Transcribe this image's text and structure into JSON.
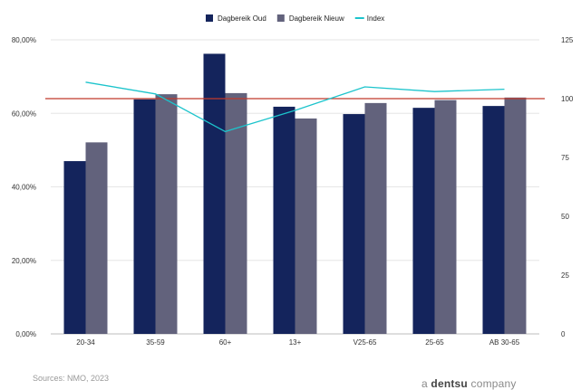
{
  "chart_data": {
    "type": "bar",
    "categories": [
      "20-34",
      "35-59",
      "60+",
      "13+",
      "V25-65",
      "25-65",
      "AB 30-65"
    ],
    "series": [
      {
        "name": "Dagbereik Oud",
        "type": "bar",
        "axis": "left",
        "color": "#14245c",
        "values": [
          47.0,
          63.8,
          76.2,
          61.8,
          59.8,
          61.5,
          62.0
        ]
      },
      {
        "name": "Dagbereik Nieuw",
        "type": "bar",
        "axis": "left",
        "color": "#62627c",
        "values": [
          52.1,
          65.2,
          65.5,
          58.6,
          62.8,
          63.6,
          64.3
        ]
      },
      {
        "name": "Index",
        "type": "line",
        "axis": "right",
        "color": "#1cc4cc",
        "values": [
          107,
          102,
          86,
          95,
          105,
          103,
          104
        ]
      }
    ],
    "reference_line": {
      "axis": "right",
      "value": 100,
      "color": "#c0392b"
    },
    "left_axis": {
      "ylim": [
        0,
        80
      ],
      "ticks": [
        "0,00%",
        "20,00%",
        "40,00%",
        "60,00%",
        "80,00%"
      ]
    },
    "right_axis": {
      "ylim": [
        0,
        125
      ],
      "ticks": [
        "0",
        "25",
        "50",
        "75",
        "100",
        "125"
      ]
    },
    "legend": "top-center",
    "grid": true
  },
  "footer": {
    "source": "Sources: NMO, 2023",
    "brand_prefix": "a",
    "brand_name": "dentsu",
    "brand_suffix": "company"
  }
}
